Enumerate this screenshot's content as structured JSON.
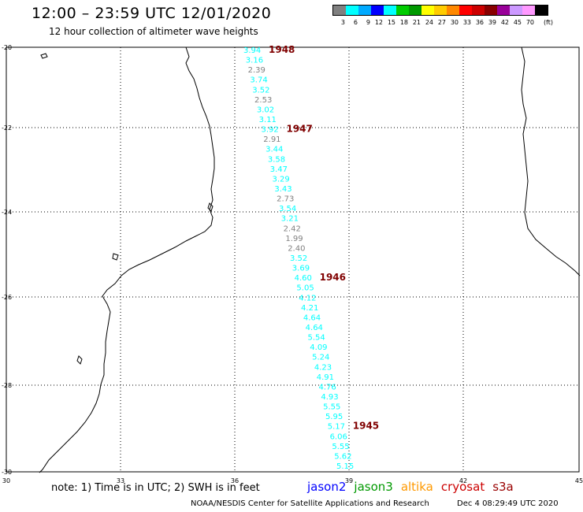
{
  "header": {
    "title": "12:00 – 23:59 UTC 12/01/2020",
    "subtitle": "12 hour collection of altimeter wave heights"
  },
  "legend": {
    "colors": [
      "#808080",
      "#00ffff",
      "#00aaff",
      "#0000ff",
      "#00ffff",
      "#00cc00",
      "#009900",
      "#ffff00",
      "#ffcc00",
      "#ff8800",
      "#ff0000",
      "#cc0000",
      "#880000",
      "#990099",
      "#cc99ff",
      "#ff99ff",
      "#000000"
    ],
    "labels": [
      "3",
      "6",
      "9",
      "12",
      "15",
      "18",
      "21",
      "24",
      "27",
      "30",
      "33",
      "36",
      "39",
      "42",
      "45",
      "70"
    ],
    "unit": "(ft)"
  },
  "map": {
    "x_ticks": [
      "30",
      "33",
      "36",
      "39",
      "42",
      "45"
    ],
    "y_ticks": [
      "-20",
      "-22",
      "-24",
      "-26",
      "-28",
      "-30"
    ],
    "track_values": [
      {
        "v": "3.94",
        "c": "#00ffff"
      },
      {
        "v": "3.16",
        "c": "#00ffff"
      },
      {
        "v": "2.39",
        "c": "#808080"
      },
      {
        "v": "3.74",
        "c": "#00ffff"
      },
      {
        "v": "3.52",
        "c": "#00ffff"
      },
      {
        "v": "2.53",
        "c": "#808080"
      },
      {
        "v": "3.02",
        "c": "#00ffff"
      },
      {
        "v": "3.11",
        "c": "#00ffff"
      },
      {
        "v": "3.92",
        "c": "#00ffff"
      },
      {
        "v": "2.91",
        "c": "#808080"
      },
      {
        "v": "3.44",
        "c": "#00ffff"
      },
      {
        "v": "3.58",
        "c": "#00ffff"
      },
      {
        "v": "3.47",
        "c": "#00ffff"
      },
      {
        "v": "3.29",
        "c": "#00ffff"
      },
      {
        "v": "3.43",
        "c": "#00ffff"
      },
      {
        "v": "2.73",
        "c": "#808080"
      },
      {
        "v": "3.54",
        "c": "#00ffff"
      },
      {
        "v": "3.21",
        "c": "#00ffff"
      },
      {
        "v": "2.42",
        "c": "#808080"
      },
      {
        "v": "1.99",
        "c": "#808080"
      },
      {
        "v": "2.40",
        "c": "#808080"
      },
      {
        "v": "3.52",
        "c": "#00ffff"
      },
      {
        "v": "3.69",
        "c": "#00ffff"
      },
      {
        "v": "4.60",
        "c": "#00ffff"
      },
      {
        "v": "5.05",
        "c": "#00ffff"
      },
      {
        "v": "4.12",
        "c": "#00ffff"
      },
      {
        "v": "4.21",
        "c": "#00ffff"
      },
      {
        "v": "4.64",
        "c": "#00ffff"
      },
      {
        "v": "4.64",
        "c": "#00ffff"
      },
      {
        "v": "5.54",
        "c": "#00ffff"
      },
      {
        "v": "4.09",
        "c": "#00ffff"
      },
      {
        "v": "5.24",
        "c": "#00ffff"
      },
      {
        "v": "4.23",
        "c": "#00ffff"
      },
      {
        "v": "4.91",
        "c": "#00ffff"
      },
      {
        "v": "4.76",
        "c": "#00ffff"
      },
      {
        "v": "4.93",
        "c": "#00ffff"
      },
      {
        "v": "5.55",
        "c": "#00ffff"
      },
      {
        "v": "5.95",
        "c": "#00ffff"
      },
      {
        "v": "5.17",
        "c": "#00ffff"
      },
      {
        "v": "6.06",
        "c": "#00ffff"
      },
      {
        "v": "5.55",
        "c": "#00ffff"
      },
      {
        "v": "5.62",
        "c": "#00ffff"
      },
      {
        "v": "5.15",
        "c": "#00ffff"
      }
    ],
    "time_labels": [
      {
        "t": "1948",
        "row": 0
      },
      {
        "t": "1947",
        "row": 8
      },
      {
        "t": "1946",
        "row": 23
      },
      {
        "t": "1945",
        "row": 38
      }
    ],
    "time_color": "#800000"
  },
  "footer": {
    "note": "note: 1) Time is in UTC; 2) SWH is in feet",
    "satellites": [
      {
        "name": "jason2",
        "color": "#0000ff"
      },
      {
        "name": "jason3",
        "color": "#009900"
      },
      {
        "name": "altika",
        "color": "#ff9900"
      },
      {
        "name": "cryosat",
        "color": "#cc0000"
      },
      {
        "name": "s3a",
        "color": "#990000"
      }
    ],
    "credit": "NOAA/NESDIS Center for Satellite Applications and Research",
    "date": "Dec  4 08:29:49 UTC 2020"
  }
}
